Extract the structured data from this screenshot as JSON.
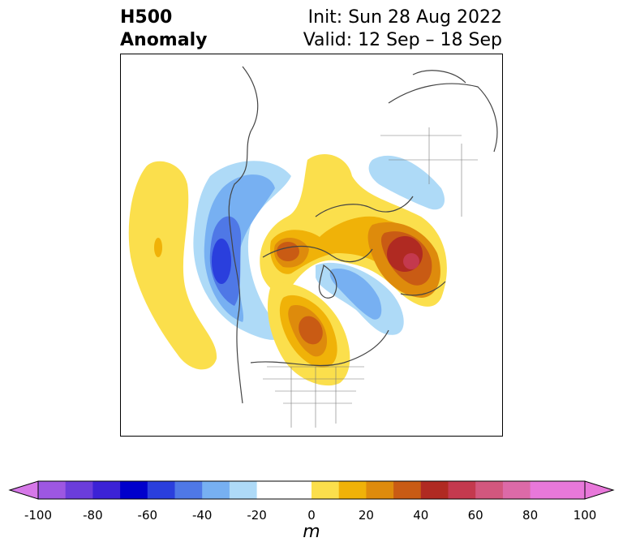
{
  "header": {
    "left_line1": "H500",
    "left_line2": "Anomaly",
    "right_line1": "Init: Sun 28 Aug 2022",
    "right_line2": "Valid: 12 Sep – 18 Sep"
  },
  "colorbar": {
    "label": "m",
    "ticks": [
      "-100",
      "-80",
      "-60",
      "-40",
      "-20",
      "0",
      "20",
      "40",
      "60",
      "80",
      "100"
    ],
    "colors": [
      "#d678e8",
      "#9d57e2",
      "#6b3ddb",
      "#3c22d6",
      "#0000cc",
      "#2a3fdd",
      "#4f78e6",
      "#77b0f2",
      "#aedaf7",
      "#ffffff",
      "#fbdf4c",
      "#f0b208",
      "#de8b0c",
      "#c95b14",
      "#b02a22",
      "#c4394e",
      "#d2577e",
      "#dc6aa8",
      "#e878da"
    ]
  },
  "colors": {
    "land_outline": "#444444"
  }
}
